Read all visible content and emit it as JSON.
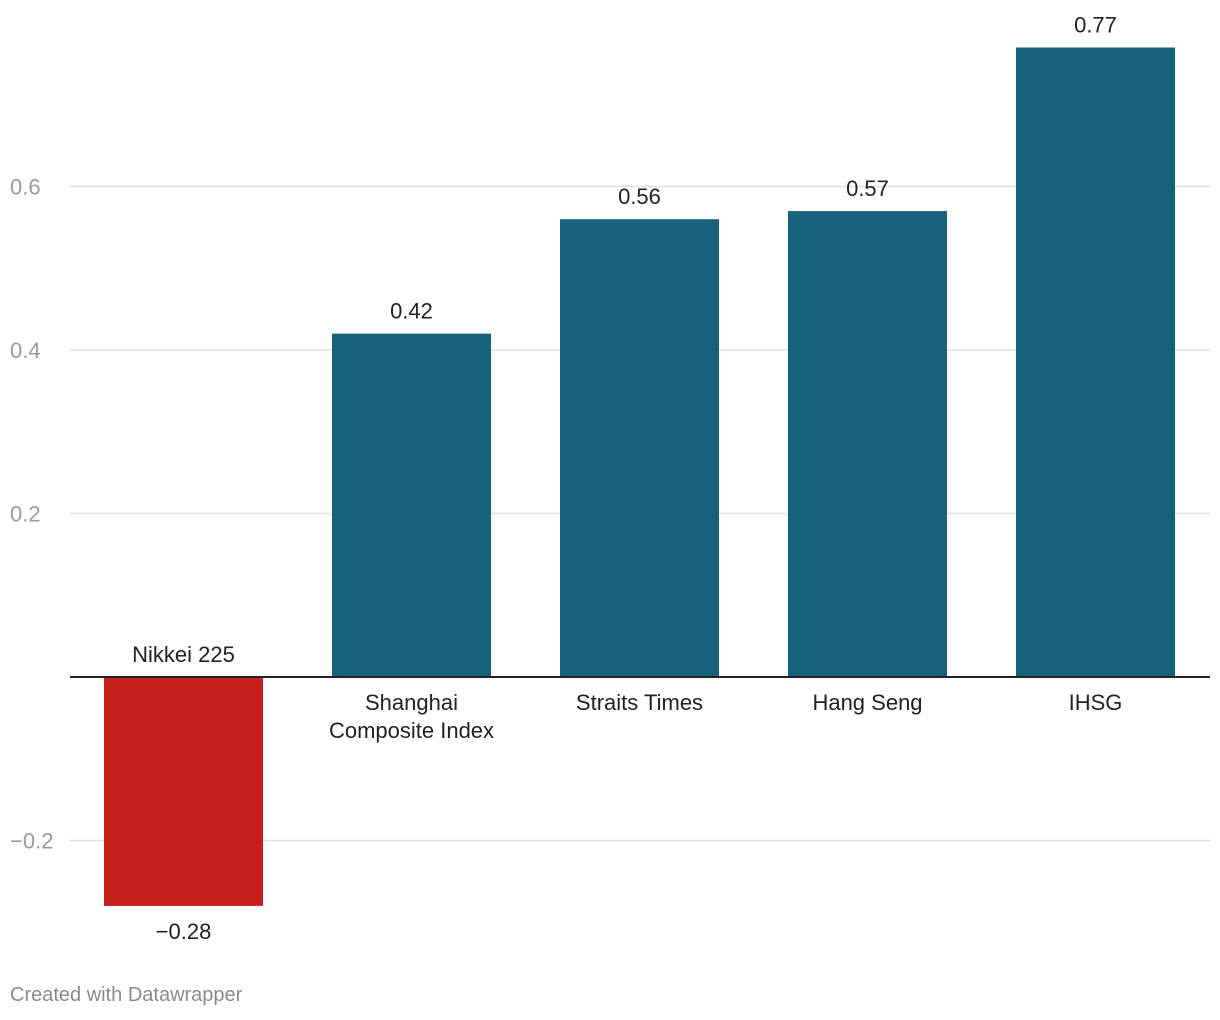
{
  "chart_data": {
    "type": "bar",
    "categories": [
      "Nikkei 225",
      "Shanghai Composite Index",
      "Straits Times",
      "Hang Seng",
      "IHSG"
    ],
    "category_lines": [
      [
        "Nikkei 225"
      ],
      [
        "Shanghai",
        "Composite Index"
      ],
      [
        "Straits Times"
      ],
      [
        "Hang Seng"
      ],
      [
        "IHSG"
      ]
    ],
    "values": [
      -0.28,
      0.42,
      0.56,
      0.57,
      0.77
    ],
    "value_labels": [
      "−0.28",
      "0.42",
      "0.56",
      "0.57",
      "0.77"
    ],
    "colors": [
      "#c81d1d",
      "#17627b",
      "#17627b",
      "#17627b",
      "#17627b"
    ],
    "y_ticks": [
      -0.2,
      0.2,
      0.4,
      0.6
    ],
    "y_tick_labels": [
      "−0.2",
      "0.2",
      "0.4",
      "0.6"
    ],
    "ylim": [
      -0.3,
      0.78
    ],
    "grid": true,
    "title": "",
    "xlabel": "",
    "ylabel": ""
  },
  "footer": {
    "credit": "Created with Datawrapper"
  }
}
